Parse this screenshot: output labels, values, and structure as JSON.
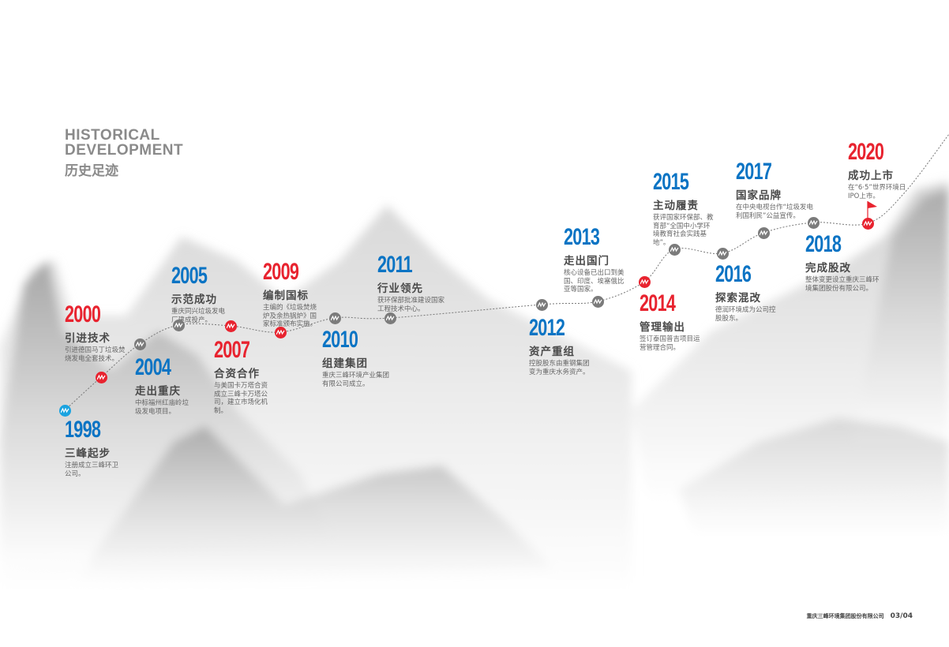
{
  "heading": {
    "en_line1": "HISTORICAL",
    "en_line2": "DEVELOPMENT",
    "cn": "历史足迹"
  },
  "colors": {
    "blue": "#0b74c4",
    "red": "#e8232f",
    "gray": "#7b7b7b",
    "cyan": "#1aa3e0"
  },
  "events": [
    {
      "year": "1998",
      "title": "三峰起步",
      "desc": "注册成立三峰环卫公司。",
      "year_color": "blue",
      "node": "cyan"
    },
    {
      "year": "2000",
      "title": "引进技术",
      "desc": "引进德国马丁垃圾焚烧发电全套技术。",
      "year_color": "red",
      "node": "red"
    },
    {
      "year": "2004",
      "title": "走出重庆",
      "desc": "中标福州红庙岭垃圾发电项目。",
      "year_color": "blue",
      "node": "gray"
    },
    {
      "year": "2005",
      "title": "示范成功",
      "desc": "重庆同兴垃圾发电厂建成投产。",
      "year_color": "blue",
      "node": "gray"
    },
    {
      "year": "2007",
      "title": "合资合作",
      "desc": "与美国卡万塔合资成立三峰卡万塔公司，建立市场化机制。",
      "year_color": "red",
      "node": "red"
    },
    {
      "year": "2009",
      "title": "编制国标",
      "desc": "主编的《垃圾焚烧炉及余热锅炉》国家标准颁布实施。",
      "year_color": "red",
      "node": "red"
    },
    {
      "year": "2010",
      "title": "组建集团",
      "desc": "重庆三峰环境产业集团有限公司成立。",
      "year_color": "blue",
      "node": "gray"
    },
    {
      "year": "2011",
      "title": "行业领先",
      "desc": "获环保部批准建设国家工程技术中心。",
      "year_color": "blue",
      "node": "gray"
    },
    {
      "year": "2012",
      "title": "资产重组",
      "desc": "控股股东由重钢集团变为重庆水务资产。",
      "year_color": "blue",
      "node": "gray"
    },
    {
      "year": "2013",
      "title": "走出国门",
      "desc": "核心设备已出口到美国、印度、埃塞俄比亚等国家。",
      "year_color": "blue",
      "node": "gray"
    },
    {
      "year": "2014",
      "title": "管理输出",
      "desc": "签订泰国普吉项目运营管理合同。",
      "year_color": "red",
      "node": "red"
    },
    {
      "year": "2015",
      "title": "主动履责",
      "desc": "获评国家环保部、教育部“全国中小学环境教育社会实践基地”。",
      "year_color": "blue",
      "node": "gray"
    },
    {
      "year": "2016",
      "title": "探索混改",
      "desc": "德润环境成为公司控股股东。",
      "year_color": "blue",
      "node": "gray"
    },
    {
      "year": "2017",
      "title": "国家品牌",
      "desc": "在中央电视台作“垃圾发电 利国利民”公益宣传。",
      "year_color": "blue",
      "node": "gray"
    },
    {
      "year": "2018",
      "title": "完成股改",
      "desc": "整体变更设立重庆三峰环境集团股份有限公司。",
      "year_color": "blue",
      "node": "gray"
    },
    {
      "year": "2020",
      "title": "成功上市",
      "desc": "在“6·5”世界环境日IPO上市。",
      "year_color": "red",
      "node": "red",
      "flag_icon": true
    }
  ],
  "footer": {
    "company": "重庆三峰环境集团股份有限公司",
    "page": "03/04"
  }
}
